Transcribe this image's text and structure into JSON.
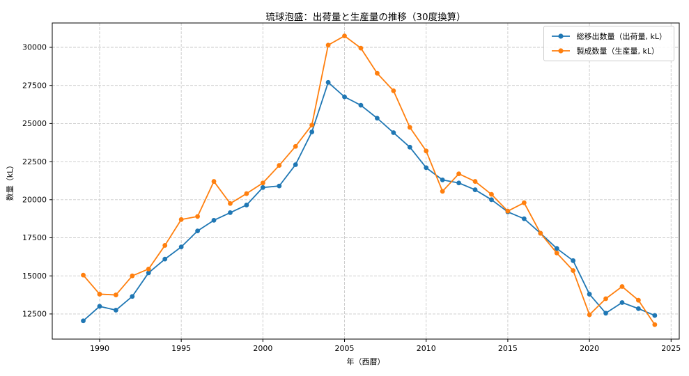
{
  "chart_data": {
    "type": "line",
    "title": "琉球泡盛：出荷量と生産量の推移（30度換算）",
    "xlabel": "年（西暦）",
    "ylabel": "数量（kL）",
    "x": [
      1989,
      1990,
      1991,
      1992,
      1993,
      1994,
      1995,
      1996,
      1997,
      1998,
      1999,
      2000,
      2001,
      2002,
      2003,
      2004,
      2005,
      2006,
      2007,
      2008,
      2009,
      2010,
      2011,
      2012,
      2013,
      2014,
      2015,
      2016,
      2017,
      2018,
      2019,
      2020,
      2021,
      2022,
      2023,
      2024
    ],
    "series": [
      {
        "name": "総移出数量（出荷量, kL）",
        "color": "#1f77b4",
        "values": [
          12050,
          13000,
          12750,
          13650,
          15200,
          16100,
          16900,
          17950,
          18650,
          19150,
          19650,
          20800,
          20900,
          22300,
          24450,
          27700,
          26750,
          26200,
          25350,
          24400,
          23450,
          22100,
          21300,
          21100,
          20650,
          20000,
          19200,
          18750,
          17800,
          16800,
          16000,
          13800,
          12550,
          13250,
          12850,
          12400
        ]
      },
      {
        "name": "製成数量（生産量, kL）",
        "color": "#ff7f0e",
        "values": [
          15050,
          13800,
          13750,
          15000,
          15450,
          17000,
          18700,
          18900,
          21200,
          19750,
          20400,
          21100,
          22250,
          23500,
          24900,
          30150,
          30750,
          29950,
          28300,
          27150,
          24750,
          23200,
          20550,
          21700,
          21200,
          20350,
          19250,
          19800,
          17800,
          16500,
          15350,
          12450,
          13500,
          14300,
          13400,
          11800
        ]
      }
    ],
    "xlim": [
      1987.1,
      2025.5
    ],
    "ylim": [
      10850,
      31600
    ],
    "xticks": [
      1990,
      1995,
      2000,
      2005,
      2010,
      2015,
      2020,
      2025
    ],
    "yticks": [
      12500,
      15000,
      17500,
      20000,
      22500,
      25000,
      27500,
      30000
    ],
    "grid": true,
    "grid_style": "dashed",
    "legend_position": "upper right"
  },
  "styles": {
    "background": "#ffffff",
    "grid_color": "#c9c9c9",
    "axis_color": "#000000",
    "tick_label_color": "#000000",
    "series_blue": "#1f77b4",
    "series_orange": "#ff7f0e",
    "legend_border": "#cccccc"
  }
}
